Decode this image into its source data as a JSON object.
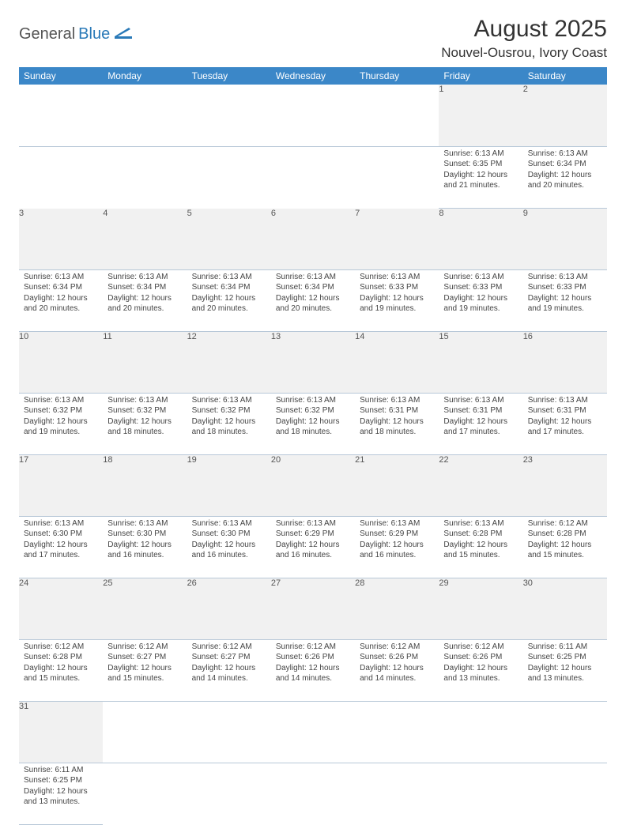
{
  "logo": {
    "text1": "General",
    "text2": "Blue"
  },
  "header": {
    "month_title": "August 2025",
    "location": "Nouvel-Ousrou, Ivory Coast"
  },
  "colors": {
    "header_bg": "#3b87c8",
    "header_text": "#ffffff",
    "daynum_bg": "#f1f1f1",
    "row_border": "#b8c8d8",
    "text": "#444444",
    "logo_gray": "#555555",
    "logo_blue": "#2a7ab8",
    "page_bg": "#ffffff"
  },
  "typography": {
    "month_title_fontsize": 30,
    "location_fontsize": 17,
    "weekday_fontsize": 12,
    "daynum_fontsize": 11,
    "cell_fontsize": 10,
    "font_family": "Arial"
  },
  "weekdays": [
    "Sunday",
    "Monday",
    "Tuesday",
    "Wednesday",
    "Thursday",
    "Friday",
    "Saturday"
  ],
  "weeks": [
    [
      null,
      null,
      null,
      null,
      null,
      {
        "n": "1",
        "sunrise": "Sunrise: 6:13 AM",
        "sunset": "Sunset: 6:35 PM",
        "daylight": "Daylight: 12 hours and 21 minutes."
      },
      {
        "n": "2",
        "sunrise": "Sunrise: 6:13 AM",
        "sunset": "Sunset: 6:34 PM",
        "daylight": "Daylight: 12 hours and 20 minutes."
      }
    ],
    [
      {
        "n": "3",
        "sunrise": "Sunrise: 6:13 AM",
        "sunset": "Sunset: 6:34 PM",
        "daylight": "Daylight: 12 hours and 20 minutes."
      },
      {
        "n": "4",
        "sunrise": "Sunrise: 6:13 AM",
        "sunset": "Sunset: 6:34 PM",
        "daylight": "Daylight: 12 hours and 20 minutes."
      },
      {
        "n": "5",
        "sunrise": "Sunrise: 6:13 AM",
        "sunset": "Sunset: 6:34 PM",
        "daylight": "Daylight: 12 hours and 20 minutes."
      },
      {
        "n": "6",
        "sunrise": "Sunrise: 6:13 AM",
        "sunset": "Sunset: 6:34 PM",
        "daylight": "Daylight: 12 hours and 20 minutes."
      },
      {
        "n": "7",
        "sunrise": "Sunrise: 6:13 AM",
        "sunset": "Sunset: 6:33 PM",
        "daylight": "Daylight: 12 hours and 19 minutes."
      },
      {
        "n": "8",
        "sunrise": "Sunrise: 6:13 AM",
        "sunset": "Sunset: 6:33 PM",
        "daylight": "Daylight: 12 hours and 19 minutes."
      },
      {
        "n": "9",
        "sunrise": "Sunrise: 6:13 AM",
        "sunset": "Sunset: 6:33 PM",
        "daylight": "Daylight: 12 hours and 19 minutes."
      }
    ],
    [
      {
        "n": "10",
        "sunrise": "Sunrise: 6:13 AM",
        "sunset": "Sunset: 6:32 PM",
        "daylight": "Daylight: 12 hours and 19 minutes."
      },
      {
        "n": "11",
        "sunrise": "Sunrise: 6:13 AM",
        "sunset": "Sunset: 6:32 PM",
        "daylight": "Daylight: 12 hours and 18 minutes."
      },
      {
        "n": "12",
        "sunrise": "Sunrise: 6:13 AM",
        "sunset": "Sunset: 6:32 PM",
        "daylight": "Daylight: 12 hours and 18 minutes."
      },
      {
        "n": "13",
        "sunrise": "Sunrise: 6:13 AM",
        "sunset": "Sunset: 6:32 PM",
        "daylight": "Daylight: 12 hours and 18 minutes."
      },
      {
        "n": "14",
        "sunrise": "Sunrise: 6:13 AM",
        "sunset": "Sunset: 6:31 PM",
        "daylight": "Daylight: 12 hours and 18 minutes."
      },
      {
        "n": "15",
        "sunrise": "Sunrise: 6:13 AM",
        "sunset": "Sunset: 6:31 PM",
        "daylight": "Daylight: 12 hours and 17 minutes."
      },
      {
        "n": "16",
        "sunrise": "Sunrise: 6:13 AM",
        "sunset": "Sunset: 6:31 PM",
        "daylight": "Daylight: 12 hours and 17 minutes."
      }
    ],
    [
      {
        "n": "17",
        "sunrise": "Sunrise: 6:13 AM",
        "sunset": "Sunset: 6:30 PM",
        "daylight": "Daylight: 12 hours and 17 minutes."
      },
      {
        "n": "18",
        "sunrise": "Sunrise: 6:13 AM",
        "sunset": "Sunset: 6:30 PM",
        "daylight": "Daylight: 12 hours and 16 minutes."
      },
      {
        "n": "19",
        "sunrise": "Sunrise: 6:13 AM",
        "sunset": "Sunset: 6:30 PM",
        "daylight": "Daylight: 12 hours and 16 minutes."
      },
      {
        "n": "20",
        "sunrise": "Sunrise: 6:13 AM",
        "sunset": "Sunset: 6:29 PM",
        "daylight": "Daylight: 12 hours and 16 minutes."
      },
      {
        "n": "21",
        "sunrise": "Sunrise: 6:13 AM",
        "sunset": "Sunset: 6:29 PM",
        "daylight": "Daylight: 12 hours and 16 minutes."
      },
      {
        "n": "22",
        "sunrise": "Sunrise: 6:13 AM",
        "sunset": "Sunset: 6:28 PM",
        "daylight": "Daylight: 12 hours and 15 minutes."
      },
      {
        "n": "23",
        "sunrise": "Sunrise: 6:12 AM",
        "sunset": "Sunset: 6:28 PM",
        "daylight": "Daylight: 12 hours and 15 minutes."
      }
    ],
    [
      {
        "n": "24",
        "sunrise": "Sunrise: 6:12 AM",
        "sunset": "Sunset: 6:28 PM",
        "daylight": "Daylight: 12 hours and 15 minutes."
      },
      {
        "n": "25",
        "sunrise": "Sunrise: 6:12 AM",
        "sunset": "Sunset: 6:27 PM",
        "daylight": "Daylight: 12 hours and 15 minutes."
      },
      {
        "n": "26",
        "sunrise": "Sunrise: 6:12 AM",
        "sunset": "Sunset: 6:27 PM",
        "daylight": "Daylight: 12 hours and 14 minutes."
      },
      {
        "n": "27",
        "sunrise": "Sunrise: 6:12 AM",
        "sunset": "Sunset: 6:26 PM",
        "daylight": "Daylight: 12 hours and 14 minutes."
      },
      {
        "n": "28",
        "sunrise": "Sunrise: 6:12 AM",
        "sunset": "Sunset: 6:26 PM",
        "daylight": "Daylight: 12 hours and 14 minutes."
      },
      {
        "n": "29",
        "sunrise": "Sunrise: 6:12 AM",
        "sunset": "Sunset: 6:26 PM",
        "daylight": "Daylight: 12 hours and 13 minutes."
      },
      {
        "n": "30",
        "sunrise": "Sunrise: 6:11 AM",
        "sunset": "Sunset: 6:25 PM",
        "daylight": "Daylight: 12 hours and 13 minutes."
      }
    ],
    [
      {
        "n": "31",
        "sunrise": "Sunrise: 6:11 AM",
        "sunset": "Sunset: 6:25 PM",
        "daylight": "Daylight: 12 hours and 13 minutes."
      },
      null,
      null,
      null,
      null,
      null,
      null
    ]
  ]
}
